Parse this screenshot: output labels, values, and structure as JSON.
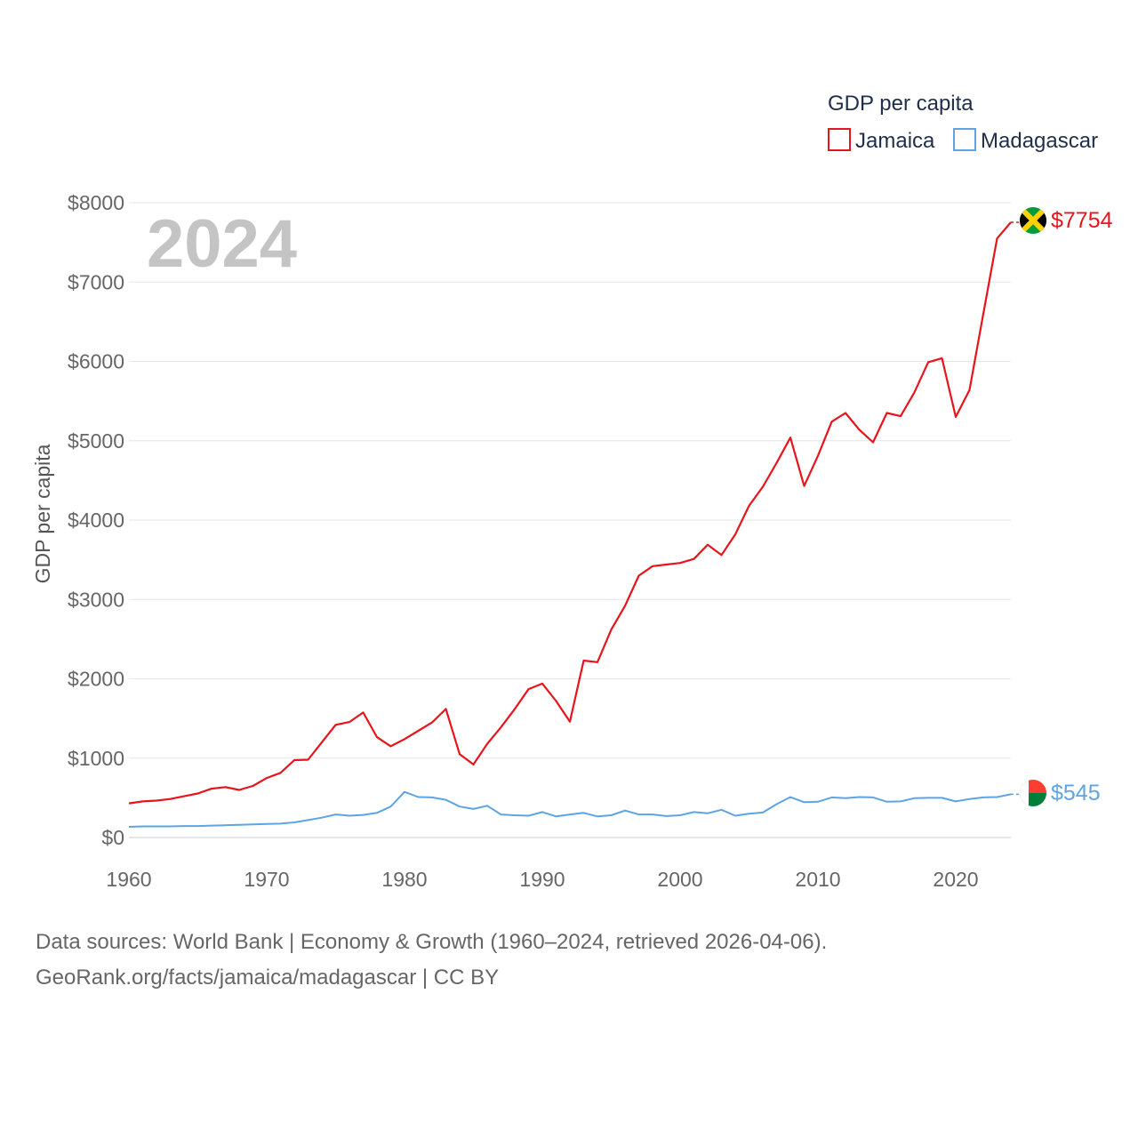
{
  "chart_data": {
    "type": "line",
    "year_label": "2024",
    "ylabel": "GDP per capita",
    "xlabel": "",
    "ylim": [
      0,
      8000
    ],
    "xlim": [
      1960,
      2024
    ],
    "y_ticks": [
      0,
      1000,
      2000,
      3000,
      4000,
      5000,
      6000,
      7000,
      8000
    ],
    "y_tick_labels": [
      "$0",
      "$1000",
      "$2000",
      "$3000",
      "$4000",
      "$5000",
      "$6000",
      "$7000",
      "$8000"
    ],
    "x_ticks": [
      1960,
      1970,
      1980,
      1990,
      2000,
      2010,
      2020
    ],
    "x_tick_labels": [
      "1960",
      "1970",
      "1980",
      "1990",
      "2000",
      "2010",
      "2020"
    ],
    "grid": true,
    "legend": {
      "title": "GDP per capita",
      "position": "top-right"
    },
    "x": [
      1960,
      1961,
      1962,
      1963,
      1964,
      1965,
      1966,
      1967,
      1968,
      1969,
      1970,
      1971,
      1972,
      1973,
      1974,
      1975,
      1976,
      1977,
      1978,
      1979,
      1980,
      1981,
      1982,
      1983,
      1984,
      1985,
      1986,
      1987,
      1988,
      1989,
      1990,
      1991,
      1992,
      1993,
      1994,
      1995,
      1996,
      1997,
      1998,
      1999,
      2000,
      2001,
      2002,
      2003,
      2004,
      2005,
      2006,
      2007,
      2008,
      2009,
      2010,
      2011,
      2012,
      2013,
      2014,
      2015,
      2016,
      2017,
      2018,
      2019,
      2020,
      2021,
      2022,
      2023,
      2024
    ],
    "series": [
      {
        "name": "Jamaica",
        "color": "#e8141c",
        "end_label": "$7754",
        "values": [
          430,
          455,
          465,
          485,
          520,
          555,
          615,
          635,
          600,
          650,
          750,
          815,
          975,
          980,
          1200,
          1420,
          1455,
          1575,
          1265,
          1150,
          1240,
          1345,
          1450,
          1620,
          1050,
          920,
          1180,
          1390,
          1620,
          1870,
          1940,
          1720,
          1460,
          2230,
          2210,
          2620,
          2920,
          3300,
          3420,
          3440,
          3460,
          3510,
          3690,
          3560,
          3820,
          4180,
          4420,
          4720,
          5040,
          4430,
          4810,
          5240,
          5350,
          5140,
          4980,
          5350,
          5310,
          5610,
          5990,
          6040,
          5300,
          5640,
          6600,
          7550,
          7754
        ]
      },
      {
        "name": "Madagascar",
        "color": "#5da4e4",
        "end_label": "$545",
        "values": [
          135,
          140,
          140,
          140,
          145,
          145,
          150,
          155,
          160,
          165,
          170,
          175,
          190,
          220,
          250,
          290,
          275,
          285,
          310,
          390,
          575,
          510,
          505,
          475,
          390,
          360,
          400,
          290,
          280,
          275,
          320,
          265,
          290,
          310,
          265,
          280,
          340,
          290,
          290,
          270,
          280,
          320,
          305,
          350,
          275,
          300,
          315,
          420,
          510,
          445,
          450,
          505,
          495,
          510,
          505,
          450,
          455,
          495,
          500,
          500,
          455,
          485,
          505,
          510,
          545
        ]
      }
    ]
  },
  "footer": {
    "line1": "Data sources: World Bank | Economy & Growth (1960–2024, retrieved 2026-04-06).",
    "line2": "GeoRank.org/facts/jamaica/madagascar | CC BY"
  }
}
